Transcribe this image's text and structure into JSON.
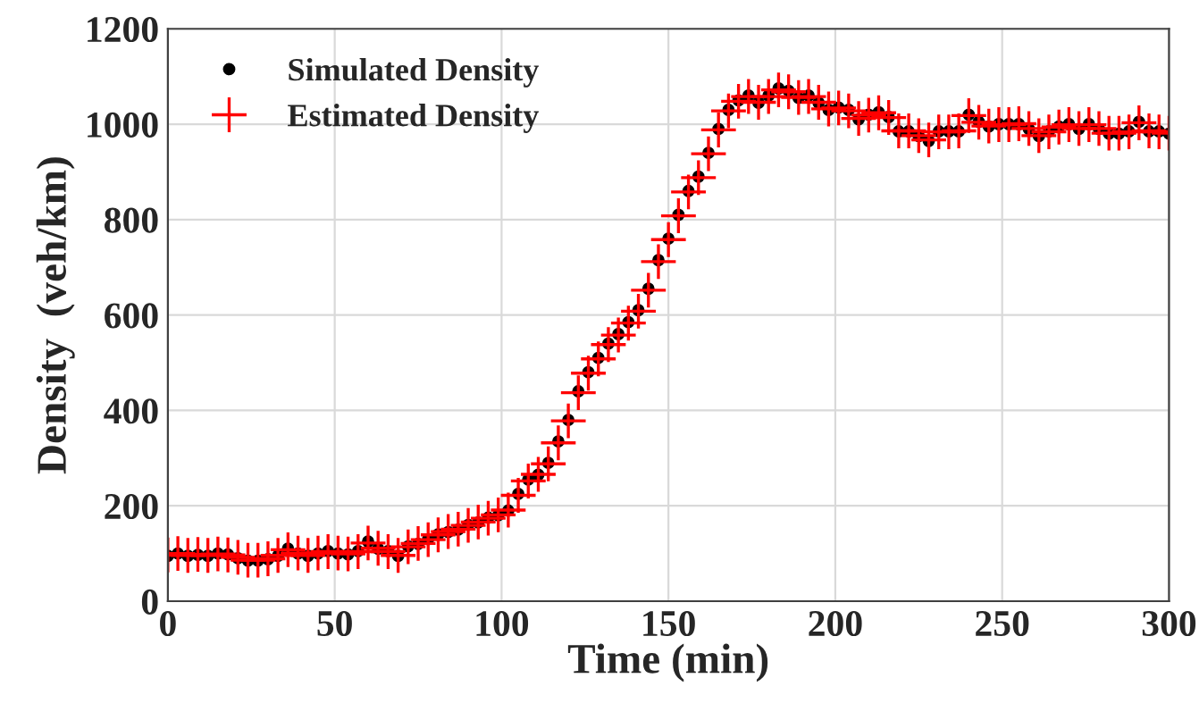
{
  "chart_data": {
    "type": "scatter",
    "xlabel": "Time (min)",
    "ylabel": "Density  (veh/km)",
    "x": [
      0,
      3,
      6,
      9,
      12,
      15,
      18,
      21,
      24,
      27,
      30,
      33,
      36,
      39,
      42,
      45,
      48,
      51,
      54,
      57,
      60,
      63,
      66,
      69,
      72,
      75,
      78,
      81,
      84,
      87,
      90,
      93,
      96,
      99,
      102,
      105,
      108,
      111,
      114,
      117,
      120,
      123,
      126,
      129,
      132,
      135,
      138,
      141,
      144,
      147,
      150,
      153,
      156,
      159,
      162,
      165,
      168,
      171,
      174,
      177,
      180,
      183,
      186,
      189,
      192,
      195,
      198,
      201,
      204,
      207,
      210,
      213,
      216,
      219,
      222,
      225,
      228,
      231,
      234,
      237,
      240,
      243,
      246,
      249,
      252,
      255,
      258,
      261,
      264,
      267,
      270,
      273,
      276,
      279,
      282,
      285,
      288,
      291,
      294,
      297,
      300
    ],
    "series": [
      {
        "name": "Simulated Density",
        "color": "#000000",
        "marker": "circle",
        "values": [
          95,
          100,
          95,
          97,
          95,
          100,
          98,
          90,
          85,
          85,
          88,
          95,
          110,
          100,
          95,
          100,
          105,
          100,
          98,
          105,
          125,
          110,
          105,
          95,
          115,
          120,
          130,
          140,
          145,
          150,
          160,
          165,
          175,
          180,
          190,
          225,
          255,
          265,
          290,
          335,
          380,
          440,
          480,
          510,
          540,
          560,
          585,
          610,
          655,
          715,
          760,
          810,
          860,
          890,
          940,
          990,
          1030,
          1050,
          1060,
          1045,
          1060,
          1075,
          1070,
          1055,
          1060,
          1045,
          1030,
          1035,
          1030,
          1010,
          1020,
          1025,
          1015,
          985,
          985,
          975,
          965,
          985,
          985,
          985,
          1020,
          1005,
          995,
          1000,
          1000,
          1000,
          990,
          975,
          985,
          995,
          1000,
          990,
          1000,
          990,
          980,
          980,
          985,
          1005,
          985,
          985,
          980
        ]
      },
      {
        "name": "Estimated Density",
        "color": "#ff0000",
        "marker": "cross",
        "values": [
          97,
          100,
          96,
          98,
          96,
          99,
          97,
          92,
          86,
          86,
          89,
          96,
          108,
          101,
          96,
          101,
          104,
          101,
          99,
          104,
          122,
          111,
          104,
          96,
          114,
          121,
          129,
          139,
          146,
          151,
          159,
          166,
          174,
          181,
          191,
          222,
          252,
          266,
          288,
          332,
          378,
          437,
          478,
          508,
          538,
          558,
          583,
          608,
          652,
          712,
          758,
          808,
          858,
          888,
          938,
          988,
          1028,
          1048,
          1058,
          1046,
          1058,
          1072,
          1068,
          1056,
          1058,
          1046,
          1032,
          1034,
          1028,
          1012,
          1019,
          1024,
          1014,
          986,
          986,
          976,
          967,
          984,
          984,
          986,
          1018,
          1004,
          996,
          999,
          999,
          1001,
          991,
          976,
          984,
          994,
          999,
          991,
          999,
          991,
          981,
          981,
          984,
          1003,
          986,
          984,
          981
        ]
      }
    ],
    "xlim": [
      0,
      300
    ],
    "xticks": [
      0,
      50,
      100,
      150,
      200,
      250,
      300
    ],
    "ylim": [
      0,
      1200
    ],
    "yticks": [
      0,
      200,
      400,
      600,
      800,
      1000,
      1200
    ],
    "grid": true,
    "legend": "top left"
  }
}
